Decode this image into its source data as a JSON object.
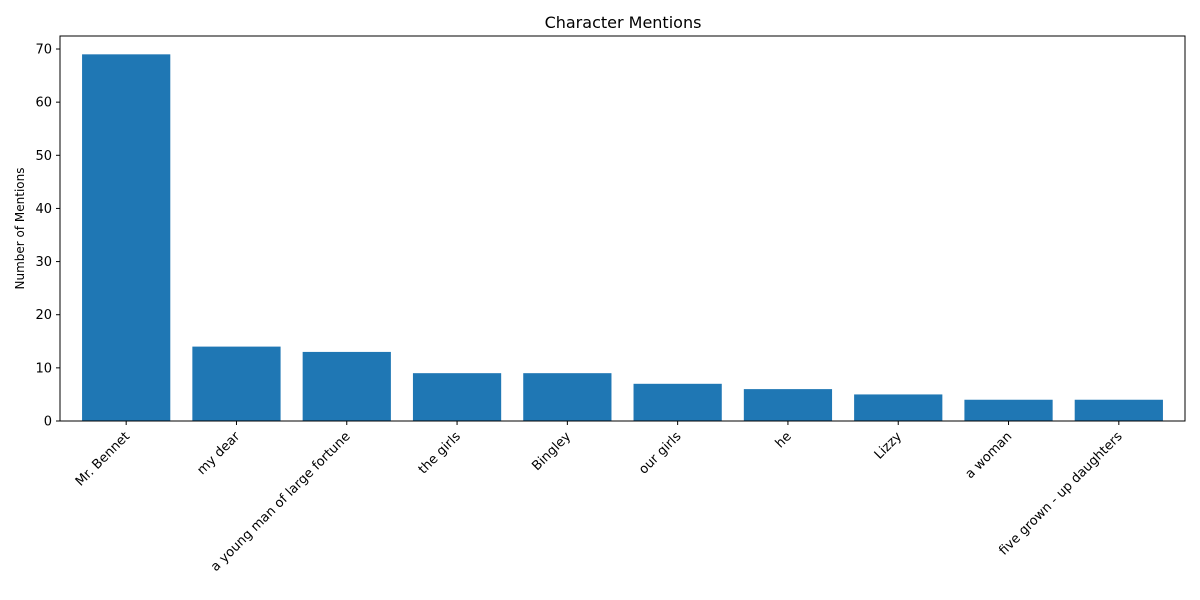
{
  "chart_data": {
    "type": "bar",
    "title": "Character Mentions",
    "xlabel": "",
    "ylabel": "Number of Mentions",
    "categories": [
      "Mr. Bennet",
      "my dear",
      "a young man of large fortune",
      "the girls",
      "Bingley",
      "our girls",
      "he",
      "Lizzy",
      "a woman",
      "five grown - up daughters"
    ],
    "values": [
      69,
      14,
      13,
      9,
      9,
      7,
      6,
      5,
      4,
      4
    ],
    "ylim": [
      0,
      72.45
    ],
    "yticks": [
      0,
      10,
      20,
      30,
      40,
      50,
      60,
      70
    ],
    "bar_color": "#1f77b4",
    "grid": false,
    "legend": "none"
  }
}
